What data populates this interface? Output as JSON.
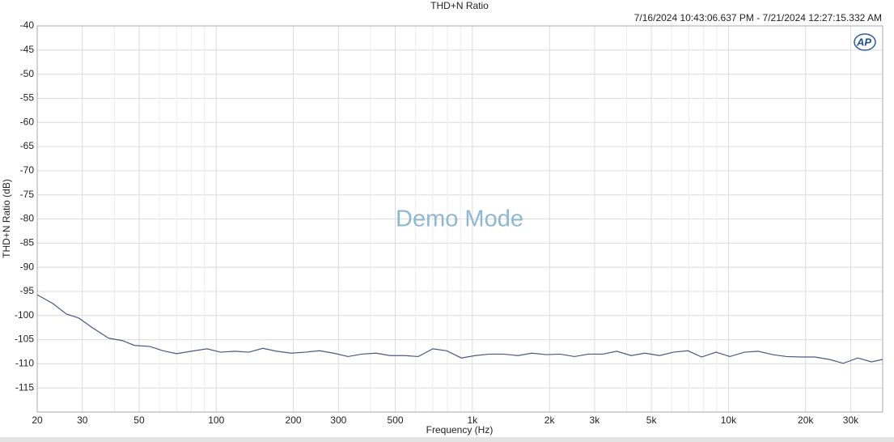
{
  "chart_data": {
    "type": "line",
    "title": "THD+N Ratio",
    "subtitle": "7/16/2024 10:43:06.637 PM - 7/21/2024 12:27:15.332 AM",
    "watermark": "Demo Mode",
    "logo": "AP",
    "x_label": "Frequency (Hz)",
    "y_label": "THD+N Ratio (dB)",
    "xscale": "log",
    "grid": true,
    "color": "#4a5784",
    "xlim": [
      20,
      40000
    ],
    "ylim": [
      -120,
      -40
    ],
    "yticks": [
      -40,
      -45,
      -50,
      -55,
      -60,
      -65,
      -70,
      -75,
      -80,
      -85,
      -90,
      -95,
      -100,
      -105,
      -110,
      -115
    ],
    "xticks": [
      20,
      30,
      50,
      100,
      200,
      300,
      500,
      {
        "value": 1000,
        "label": "1k"
      },
      {
        "value": 2000,
        "label": "2k"
      },
      {
        "value": 3000,
        "label": "3k"
      },
      {
        "value": 5000,
        "label": "5k"
      },
      {
        "value": 10000,
        "label": "10k"
      },
      {
        "value": 20000,
        "label": "20k"
      },
      {
        "value": 30000,
        "label": "30k"
      }
    ],
    "xminorticks": [
      40,
      60,
      70,
      80,
      90,
      400,
      600,
      700,
      800,
      900,
      4000,
      6000,
      7000,
      8000,
      9000
    ],
    "x": [
      20,
      23,
      26,
      29,
      33,
      38,
      43,
      48,
      55,
      62,
      70,
      80,
      92,
      104,
      118,
      134,
      152,
      172,
      196,
      222,
      253,
      287,
      327,
      370,
      421,
      477,
      544,
      615,
      701,
      794,
      906,
      1026,
      1167,
      1322,
      1507,
      1706,
      1942,
      2198,
      2506,
      2837,
      3234,
      3660,
      4171,
      4721,
      5378,
      6087,
      6938,
      7852,
      8947,
      10125,
      11540,
      13060,
      14880,
      16850,
      19200,
      21730,
      24770,
      28050,
      31980,
      36180,
      40000
    ],
    "values": [
      -95.7,
      -97.5,
      -99.7,
      -100.5,
      -102.6,
      -104.7,
      -105.2,
      -106.2,
      -106.4,
      -107.3,
      -107.9,
      -107.4,
      -106.9,
      -107.6,
      -107.4,
      -107.6,
      -106.8,
      -107.4,
      -107.8,
      -107.6,
      -107.3,
      -107.8,
      -108.5,
      -108.0,
      -107.8,
      -108.3,
      -108.3,
      -108.5,
      -106.9,
      -107.3,
      -108.8,
      -108.3,
      -108.0,
      -108.0,
      -108.3,
      -107.8,
      -108.1,
      -108.0,
      -108.5,
      -108.0,
      -108.0,
      -107.4,
      -108.3,
      -107.8,
      -108.3,
      -107.6,
      -107.3,
      -108.6,
      -107.6,
      -108.5,
      -107.6,
      -107.4,
      -108.1,
      -108.5,
      -108.6,
      -108.6,
      -109.1,
      -109.9,
      -108.8,
      -109.6,
      -109.1
    ]
  }
}
